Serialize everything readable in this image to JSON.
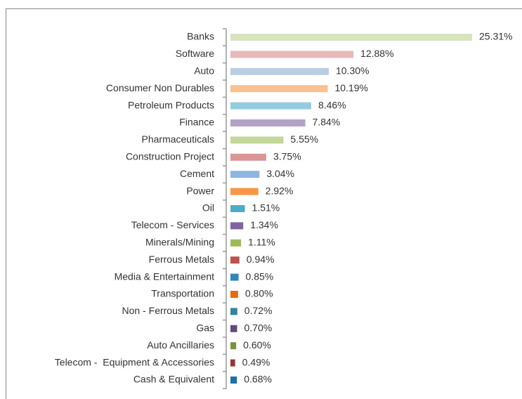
{
  "chart_data": {
    "type": "bar",
    "orientation": "horizontal",
    "categories": [
      "Banks",
      "Software",
      "Auto",
      "Consumer Non Durables",
      "Petroleum Products",
      "Finance",
      "Pharmaceuticals",
      "Construction Project",
      "Cement",
      "Power",
      "Oil",
      "Telecom - Services",
      "Minerals/Mining",
      "Ferrous Metals",
      "Media & Entertainment",
      "Transportation",
      "Non - Ferrous Metals",
      "Gas",
      "Auto Ancillaries",
      "Telecom -  Equipment & Accessories",
      "Cash & Equivalent"
    ],
    "values": [
      25.31,
      12.88,
      10.3,
      10.19,
      8.46,
      7.84,
      5.55,
      3.75,
      3.04,
      2.92,
      1.51,
      1.34,
      1.11,
      0.94,
      0.85,
      0.8,
      0.72,
      0.7,
      0.6,
      0.49,
      0.68
    ],
    "value_labels": [
      "25.31%",
      "12.88%",
      "10.30%",
      "10.19%",
      "8.46%",
      "7.84%",
      "5.55%",
      "3.75%",
      "3.04%",
      "2.92%",
      "1.51%",
      "1.34%",
      "1.11%",
      "0.94%",
      "0.85%",
      "0.80%",
      "0.72%",
      "0.70%",
      "0.60%",
      "0.49%",
      "0.68%"
    ],
    "colors": [
      "#d7e4bd",
      "#e6b9b8",
      "#b9cde5",
      "#fac090",
      "#93cddd",
      "#b3a2c7",
      "#c3d69b",
      "#d99694",
      "#8eb4e3",
      "#f79646",
      "#4bacc6",
      "#8064a2",
      "#9bbb59",
      "#c0504d",
      "#2e86c1",
      "#e46c0a",
      "#31859c",
      "#604a7b",
      "#77933c",
      "#953735",
      "#1f6fa6"
    ]
  }
}
